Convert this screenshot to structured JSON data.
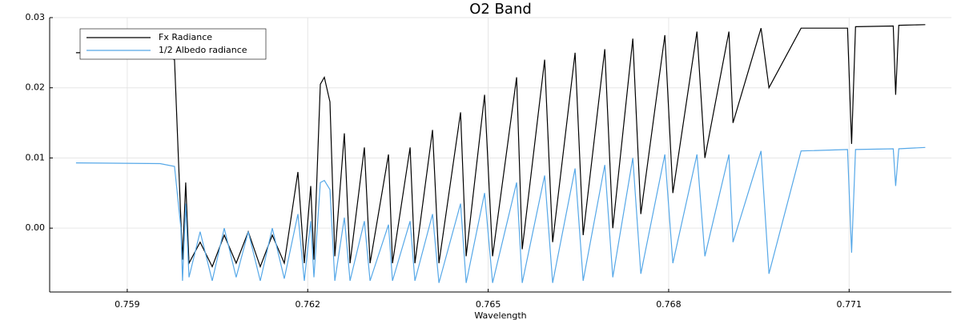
{
  "chart_data": {
    "type": "line",
    "title": "O2 Band",
    "xlabel": "Wavelength",
    "x": [
      0.758148,
      0.759546,
      0.759786,
      0.759892,
      0.759919,
      0.759972,
      0.760026,
      0.760212,
      0.760412,
      0.760612,
      0.760811,
      0.761011,
      0.761211,
      0.761411,
      0.761611,
      0.761837,
      0.761943,
      0.76205,
      0.762103,
      0.76221,
      0.762276,
      0.76237,
      0.76245,
      0.762609,
      0.762703,
      0.762942,
      0.763036,
      0.763342,
      0.763409,
      0.763702,
      0.763782,
      0.764075,
      0.764181,
      0.764541,
      0.764634,
      0.76494,
      0.765073,
      0.765473,
      0.765566,
      0.765939,
      0.766072,
      0.766445,
      0.766579,
      0.766938,
      0.767071,
      0.767404,
      0.767537,
      0.767937,
      0.76807,
      0.76847,
      0.768603,
      0.769002,
      0.769069,
      0.769535,
      0.769668,
      0.770201,
      0.770974,
      0.771041,
      0.771107,
      0.771733,
      0.771773,
      0.771826,
      0.772266
    ],
    "series": [
      {
        "name": "Fx Radiance",
        "color": "#000000",
        "values": [
          0.025,
          0.025,
          0.024,
          0.001,
          -0.0045,
          0.0065,
          -0.005,
          -0.002,
          -0.0055,
          -0.001,
          -0.005,
          -0.0005,
          -0.0055,
          -0.001,
          -0.005,
          0.008,
          -0.005,
          0.006,
          -0.0045,
          0.0205,
          0.0215,
          0.018,
          -0.004,
          0.0135,
          -0.005,
          0.0115,
          -0.005,
          0.0105,
          -0.005,
          0.0115,
          -0.005,
          0.014,
          -0.005,
          0.0165,
          -0.004,
          0.019,
          -0.004,
          0.0215,
          -0.003,
          0.024,
          -0.002,
          0.025,
          -0.001,
          0.0255,
          0.0,
          0.027,
          0.002,
          0.0275,
          0.005,
          0.028,
          0.01,
          0.028,
          0.015,
          0.0285,
          0.02,
          0.0285,
          0.0285,
          0.012,
          0.0287,
          0.0288,
          0.019,
          0.0289,
          0.029
        ]
      },
      {
        "name": "1/2 Albedo radiance",
        "color": "#56a8e8",
        "values": [
          0.0093,
          0.0092,
          0.0088,
          0.0,
          -0.0075,
          0.0035,
          -0.007,
          -0.0005,
          -0.0075,
          0.0,
          -0.007,
          -0.0005,
          -0.0075,
          0.0,
          -0.0072,
          0.002,
          -0.0075,
          0.001,
          -0.007,
          0.0065,
          0.0068,
          0.0055,
          -0.0075,
          0.0015,
          -0.0075,
          0.001,
          -0.0075,
          0.0005,
          -0.0075,
          0.001,
          -0.0075,
          0.002,
          -0.0078,
          0.0035,
          -0.0078,
          0.005,
          -0.0078,
          0.0065,
          -0.0078,
          0.0075,
          -0.0078,
          0.0085,
          -0.0075,
          0.009,
          -0.007,
          0.01,
          -0.0065,
          0.0105,
          -0.005,
          0.0105,
          -0.004,
          0.0105,
          -0.002,
          0.011,
          -0.0065,
          0.011,
          0.0112,
          -0.0035,
          0.0112,
          0.0113,
          0.006,
          0.0113,
          0.0115
        ]
      }
    ],
    "xlim": [
      0.75771,
      0.7727
    ],
    "ylim": [
      -0.0091,
      0.03
    ],
    "xticks": [
      0.759,
      0.762,
      0.765,
      0.768,
      0.771
    ],
    "yticks": [
      {
        "value": 0,
        "label": "0.00"
      },
      {
        "value": 0.01,
        "label": "0.01"
      },
      {
        "value": 0.02,
        "label": "0.02"
      },
      {
        "value": 0.03,
        "label": "0.03"
      }
    ],
    "grid": true,
    "legend": "top-left"
  }
}
